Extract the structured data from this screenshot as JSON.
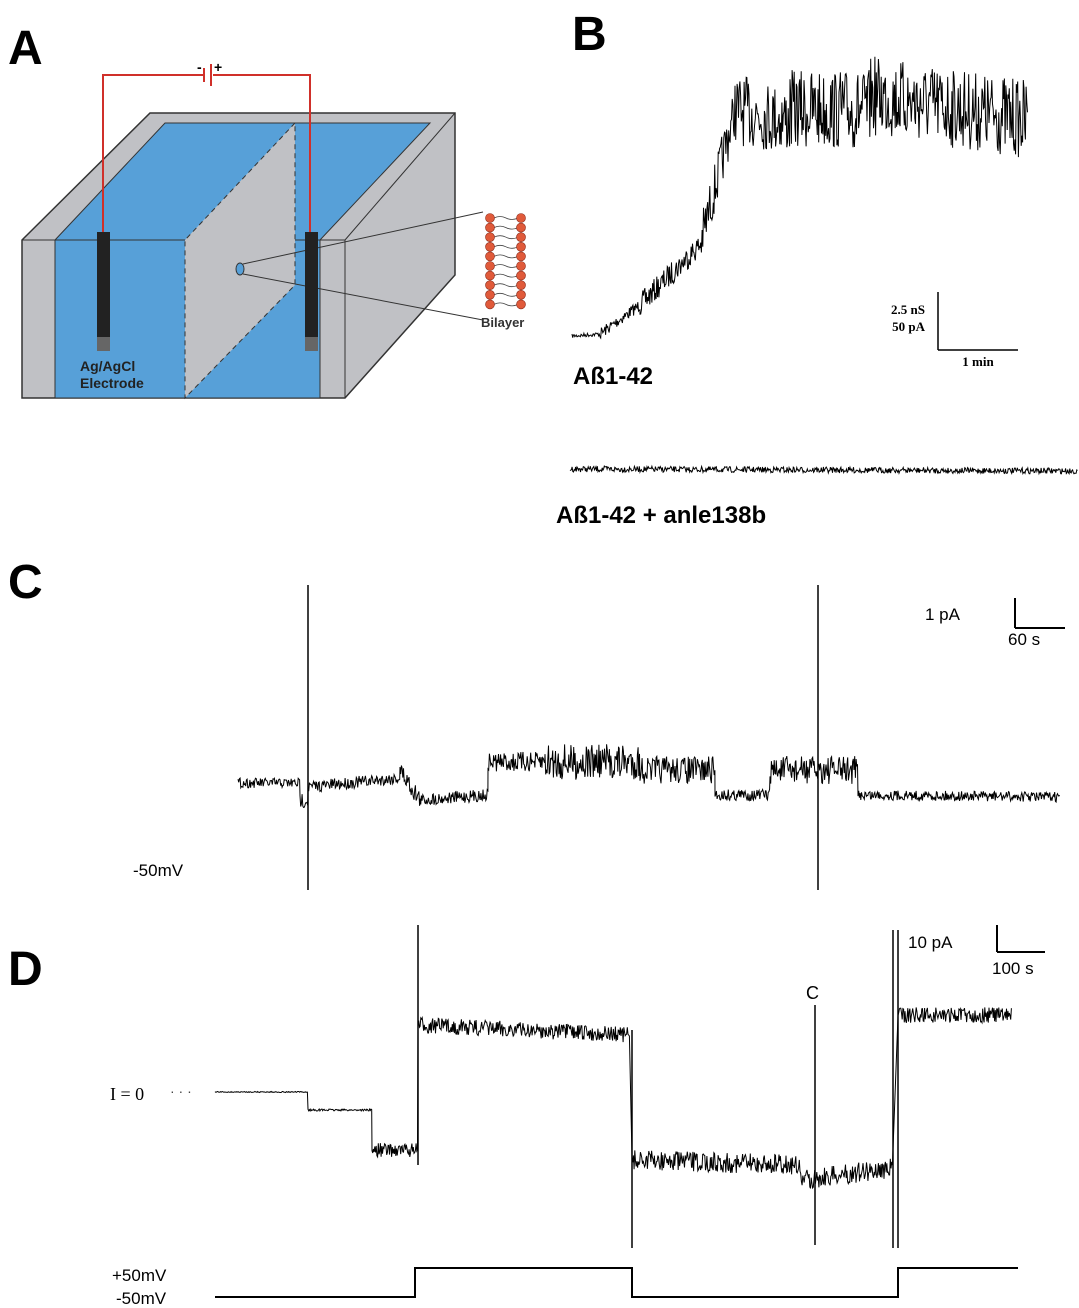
{
  "panel_a": {
    "label": "A",
    "battery_minus": "-",
    "battery_plus": "+",
    "electrode_label": [
      "Ag/AgCl",
      "Electrode"
    ],
    "bilayer_label": "Bilayer"
  },
  "panel_b": {
    "label": "B",
    "scale_y": [
      "2.5 nS",
      "50 pA"
    ],
    "scale_x": "1 min",
    "trace_labels": [
      "Aß1-42",
      "Aß1-42 + anle138b"
    ]
  },
  "panel_c": {
    "label": "C",
    "scale_y": "1 pA",
    "scale_x": "60 s",
    "voltage": "-50mV"
  },
  "panel_d": {
    "label": "D",
    "scale_y": "10 pA",
    "scale_x": "100 s",
    "marker": "C",
    "zero_label": "I = 0",
    "voltages": [
      "+50mV",
      "-50mV"
    ]
  }
}
